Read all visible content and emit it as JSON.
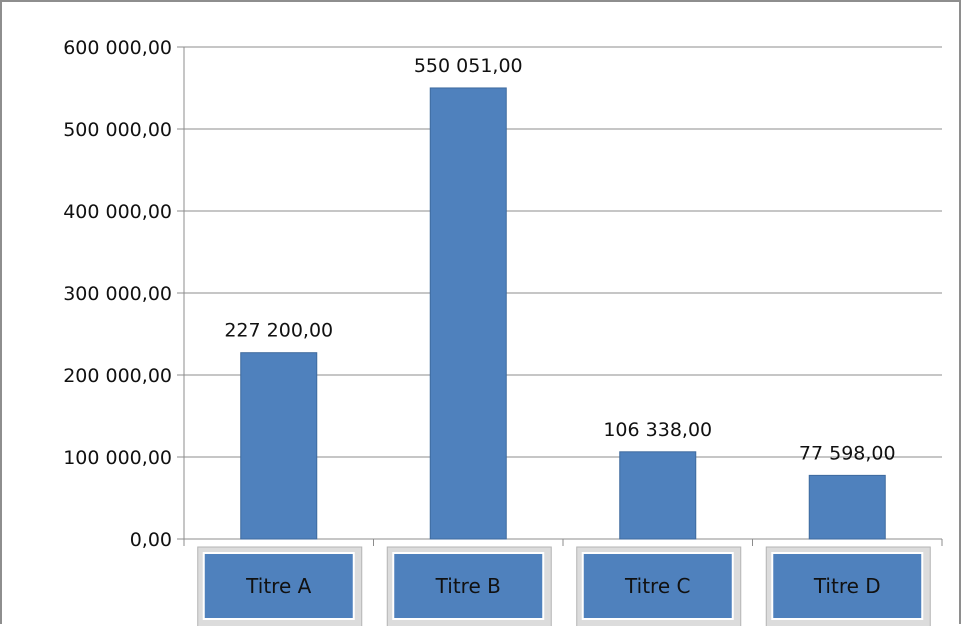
{
  "chart_data": {
    "type": "bar",
    "title": "",
    "xlabel": "",
    "ylabel": "",
    "categories": [
      "Titre A",
      "Titre B",
      "Titre C",
      "Titre D"
    ],
    "values": [
      227200,
      550051,
      106338,
      77598
    ],
    "value_labels": [
      "227 200,00",
      "550 051,00",
      "106 338,00",
      "77 598,00"
    ],
    "ylim": [
      0,
      600000
    ],
    "yticks": [
      0,
      100000,
      200000,
      300000,
      400000,
      500000,
      600000
    ],
    "ytick_labels": [
      "0,00",
      "100 000,00",
      "200 000,00",
      "300 000,00",
      "400 000,00",
      "500 000,00",
      "600 000,00"
    ],
    "grid": true,
    "legend": "none",
    "colors": {
      "bar": "#4f81bd",
      "bar_border": "#3f6a9e",
      "category_box": "#4f81bd",
      "grid": "#8c8c8c",
      "axis": "#8c8c8c"
    }
  }
}
